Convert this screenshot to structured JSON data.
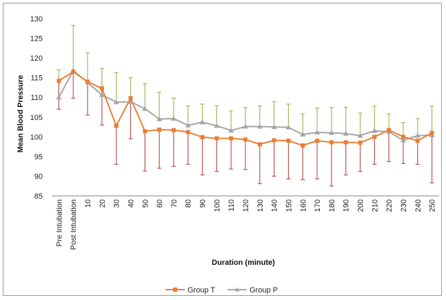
{
  "chart_data": {
    "type": "line",
    "title": "",
    "xlabel": "Duration (minute)",
    "ylabel": "Mean Blood Pressure",
    "ylim": [
      85,
      130
    ],
    "yticks": [
      "85",
      "90",
      "95",
      "100",
      "105",
      "110",
      "115",
      "120",
      "125",
      "130"
    ],
    "categories": [
      "Pre Intubation",
      "Post Intubation",
      "10",
      "20",
      "30",
      "40",
      "50",
      "60",
      "70",
      "80",
      "90",
      "100",
      "110",
      "120",
      "130",
      "140",
      "150",
      "160",
      "170",
      "180",
      "190",
      "200",
      "210",
      "220",
      "230",
      "240",
      "250"
    ],
    "grid": false,
    "legend_position": "bottom",
    "series": [
      {
        "name": "Group T",
        "color": "#ED7D31",
        "marker": "square",
        "values": [
          114.2,
          116.5,
          114.0,
          112.3,
          102.8,
          109.8,
          101.4,
          101.8,
          101.7,
          101.2,
          99.9,
          99.6,
          99.6,
          99.3,
          98.1,
          99.1,
          99.0,
          97.8,
          99.0,
          98.6,
          98.6,
          98.5,
          100.0,
          101.7,
          100.0,
          99.0,
          101.0
        ],
        "error_lower": [
          107.0,
          109.8,
          105.5,
          103.0,
          93.0,
          99.5,
          91.3,
          92.0,
          92.5,
          93.0,
          90.3,
          91.2,
          91.8,
          91.7,
          88.1,
          90.0,
          89.3,
          89.1,
          89.3,
          87.5,
          90.3,
          91.2,
          93.0,
          93.7,
          93.2,
          93.0,
          88.3
        ]
      },
      {
        "name": "Group P",
        "color": "#A5A5A5",
        "marker": "triangle",
        "values": [
          110.0,
          116.8,
          113.8,
          110.6,
          108.8,
          108.9,
          107.1,
          104.5,
          104.6,
          102.9,
          103.7,
          102.8,
          101.6,
          102.6,
          102.6,
          102.5,
          102.4,
          100.6,
          101.1,
          101.0,
          100.8,
          100.3,
          101.5,
          101.3,
          99.1,
          100.3,
          100.4
        ],
        "error_upper": [
          117.0,
          128.3,
          121.3,
          117.3,
          116.3,
          115.0,
          113.5,
          111.3,
          109.8,
          107.8,
          108.3,
          107.9,
          106.6,
          107.4,
          107.8,
          108.9,
          108.3,
          105.8,
          107.3,
          107.4,
          107.5,
          106.0,
          107.8,
          105.8,
          103.6,
          104.6,
          107.8
        ]
      }
    ]
  }
}
